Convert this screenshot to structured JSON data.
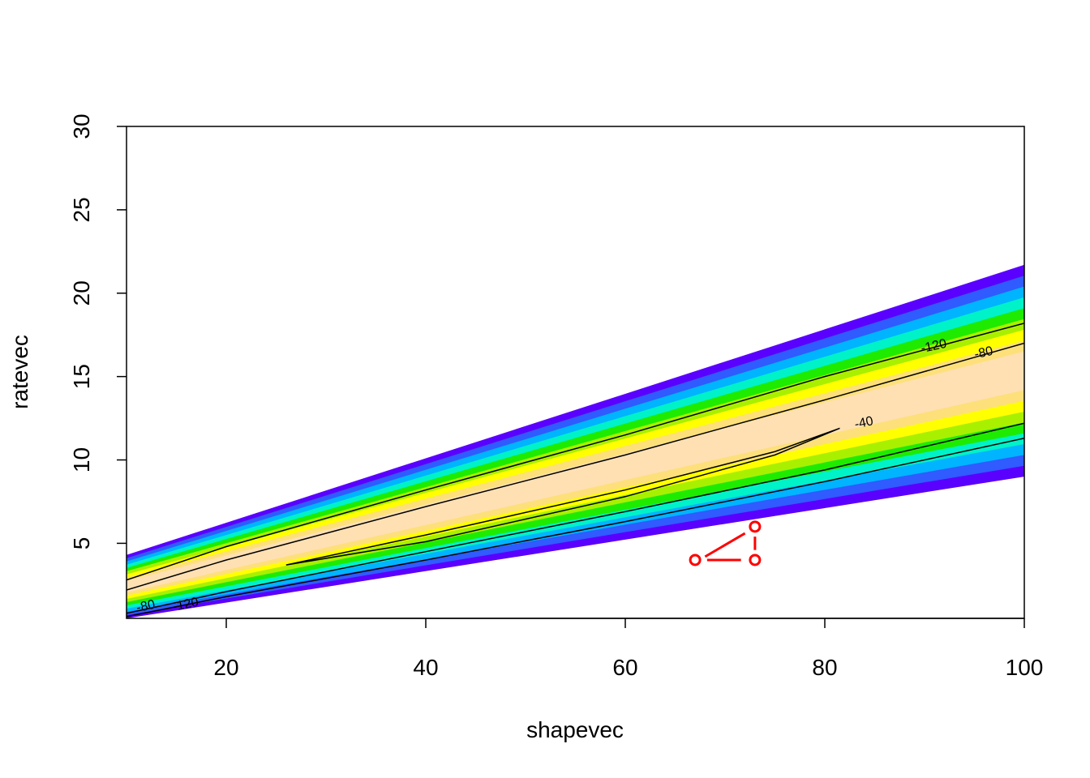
{
  "chart_data": {
    "type": "contour",
    "xlabel": "shapevec",
    "ylabel": "ratevec",
    "xlim": [
      10,
      100
    ],
    "ylim": [
      0.5,
      30
    ],
    "x_ticks": [
      20,
      40,
      60,
      80,
      100
    ],
    "y_ticks": [
      5,
      10,
      15,
      20,
      25,
      30
    ],
    "grid": false,
    "filled_band": {
      "description_levels_color_order": "outer to inner",
      "colors": [
        "#5A00FF",
        "#2F5BFF",
        "#00B4FF",
        "#00F2C8",
        "#1EEB00",
        "#A9F000",
        "#FFFF00",
        "#FDE07A",
        "#FFE0B3"
      ],
      "lower_edge": [
        [
          10,
          0.5
        ],
        [
          100,
          9.0
        ]
      ],
      "upper_edge": [
        [
          10,
          4.3
        ],
        [
          100,
          21.7
        ]
      ]
    },
    "contours": [
      {
        "level": -40,
        "label": "-40",
        "points": [
          [
            26,
            3.7
          ],
          [
            40,
            5.5
          ],
          [
            60,
            8.2
          ],
          [
            75,
            10.5
          ],
          [
            81.5,
            11.9
          ],
          [
            75,
            10.3
          ],
          [
            60,
            7.8
          ],
          [
            40,
            5.1
          ],
          [
            26,
            3.7
          ]
        ]
      },
      {
        "level": -80,
        "label": "-80",
        "points_upper": [
          [
            10,
            2.2
          ],
          [
            20,
            4.0
          ],
          [
            40,
            7.2
          ],
          [
            60,
            10.3
          ],
          [
            80,
            13.6
          ],
          [
            100,
            17.0
          ]
        ],
        "points_lower": [
          [
            10,
            0.8
          ],
          [
            20,
            2.1
          ],
          [
            40,
            4.5
          ],
          [
            60,
            6.9
          ],
          [
            80,
            9.4
          ],
          [
            100,
            12.2
          ]
        ]
      },
      {
        "level": -120,
        "label": "-120",
        "points_upper": [
          [
            10,
            2.8
          ],
          [
            20,
            4.8
          ],
          [
            40,
            8.2
          ],
          [
            60,
            11.5
          ],
          [
            80,
            15.0
          ],
          [
            100,
            18.2
          ]
        ],
        "points_lower": [
          [
            10,
            0.6
          ],
          [
            20,
            1.8
          ],
          [
            40,
            4.0
          ],
          [
            60,
            6.3
          ],
          [
            80,
            8.7
          ],
          [
            100,
            11.3
          ]
        ]
      }
    ],
    "contour_labels": [
      {
        "text": "-40",
        "x": 84,
        "y": 12.0
      },
      {
        "text": "-80",
        "x": 96,
        "y": 16.2
      },
      {
        "text": "-120",
        "x": 91,
        "y": 16.6
      },
      {
        "text": "-80",
        "x": 12,
        "y": 1.0
      },
      {
        "text": "-120",
        "x": 16,
        "y": 1.1
      }
    ],
    "overlay_points": {
      "color": "#FF0000",
      "points": [
        [
          67,
          4.0
        ],
        [
          73,
          4.0
        ],
        [
          73,
          6.0
        ]
      ],
      "segments": [
        [
          [
            68,
            4.2
          ],
          [
            72,
            5.6
          ]
        ],
        [
          [
            68.2,
            4.0
          ],
          [
            71.6,
            4.0
          ]
        ],
        [
          [
            73,
            4.6
          ],
          [
            73,
            5.4
          ]
        ]
      ]
    }
  }
}
